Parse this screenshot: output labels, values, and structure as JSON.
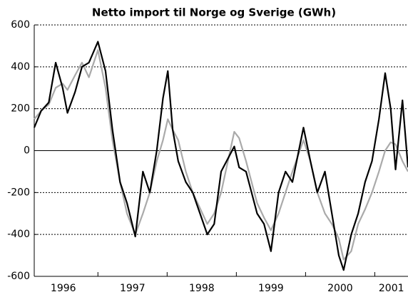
{
  "chart_data": {
    "type": "line",
    "title": "Netto import til Norge og Sverige (GWh)",
    "x": [
      1996.08,
      1996.18,
      1996.29,
      1996.39,
      1996.49,
      1996.56,
      1996.67,
      1996.77,
      1996.87,
      1997.0,
      1997.11,
      1997.21,
      1997.32,
      1997.42,
      1997.54,
      1997.65,
      1997.75,
      1997.85,
      1997.94,
      1998.01,
      1998.08,
      1998.16,
      1998.27,
      1998.37,
      1998.58,
      1998.68,
      1998.78,
      1998.97,
      1999.04,
      1999.14,
      1999.3,
      1999.4,
      1999.5,
      1999.61,
      1999.71,
      1999.81,
      1999.97,
      2000.07,
      2000.17,
      2000.28,
      2000.38,
      2000.48,
      2000.55,
      2000.66,
      2000.76,
      2000.86,
      2000.96,
      2001.06,
      2001.15,
      2001.23,
      2001.3,
      2001.4,
      2001.48
    ],
    "series": [
      {
        "color": "#aaaaaa",
        "values": [
          150,
          190,
          220,
          300,
          320,
          290,
          360,
          420,
          350,
          480,
          300,
          50,
          -150,
          -300,
          -400,
          -300,
          -200,
          -50,
          50,
          150,
          100,
          50,
          -100,
          -200,
          -350,
          -300,
          -200,
          90,
          60,
          -50,
          -250,
          -320,
          -380,
          -300,
          -200,
          -100,
          50,
          -50,
          -200,
          -300,
          -350,
          -420,
          -520,
          -480,
          -350,
          -280,
          -200,
          -100,
          0,
          40,
          30,
          -50,
          -100
        ]
      },
      {
        "color": "#000000",
        "values": [
          110,
          190,
          230,
          420,
          300,
          180,
          280,
          400,
          420,
          520,
          380,
          100,
          -150,
          -250,
          -410,
          -100,
          -200,
          0,
          250,
          380,
          100,
          -50,
          -150,
          -200,
          -400,
          -350,
          -100,
          20,
          -80,
          -100,
          -300,
          -350,
          -480,
          -200,
          -100,
          -150,
          110,
          -50,
          -200,
          -100,
          -300,
          -500,
          -570,
          -400,
          -300,
          -150,
          -50,
          150,
          370,
          200,
          -90,
          240,
          -80
        ]
      }
    ],
    "xlim": [
      1996.08,
      2001.48
    ],
    "xticks": [
      1997,
      1998,
      1999,
      2000,
      2001
    ],
    "year_labels": [
      {
        "value": 1996.5,
        "label": "1996"
      },
      {
        "value": 1997.5,
        "label": "1997"
      },
      {
        "value": 1998.5,
        "label": "1998"
      },
      {
        "value": 1999.5,
        "label": "1999"
      },
      {
        "value": 2000.5,
        "label": "2000"
      },
      {
        "value": 2001.24,
        "label": "2001"
      }
    ],
    "ylim": [
      -600,
      600
    ],
    "yticks": [
      -600,
      -400,
      -200,
      0,
      200,
      400,
      600
    ],
    "grid": true
  }
}
